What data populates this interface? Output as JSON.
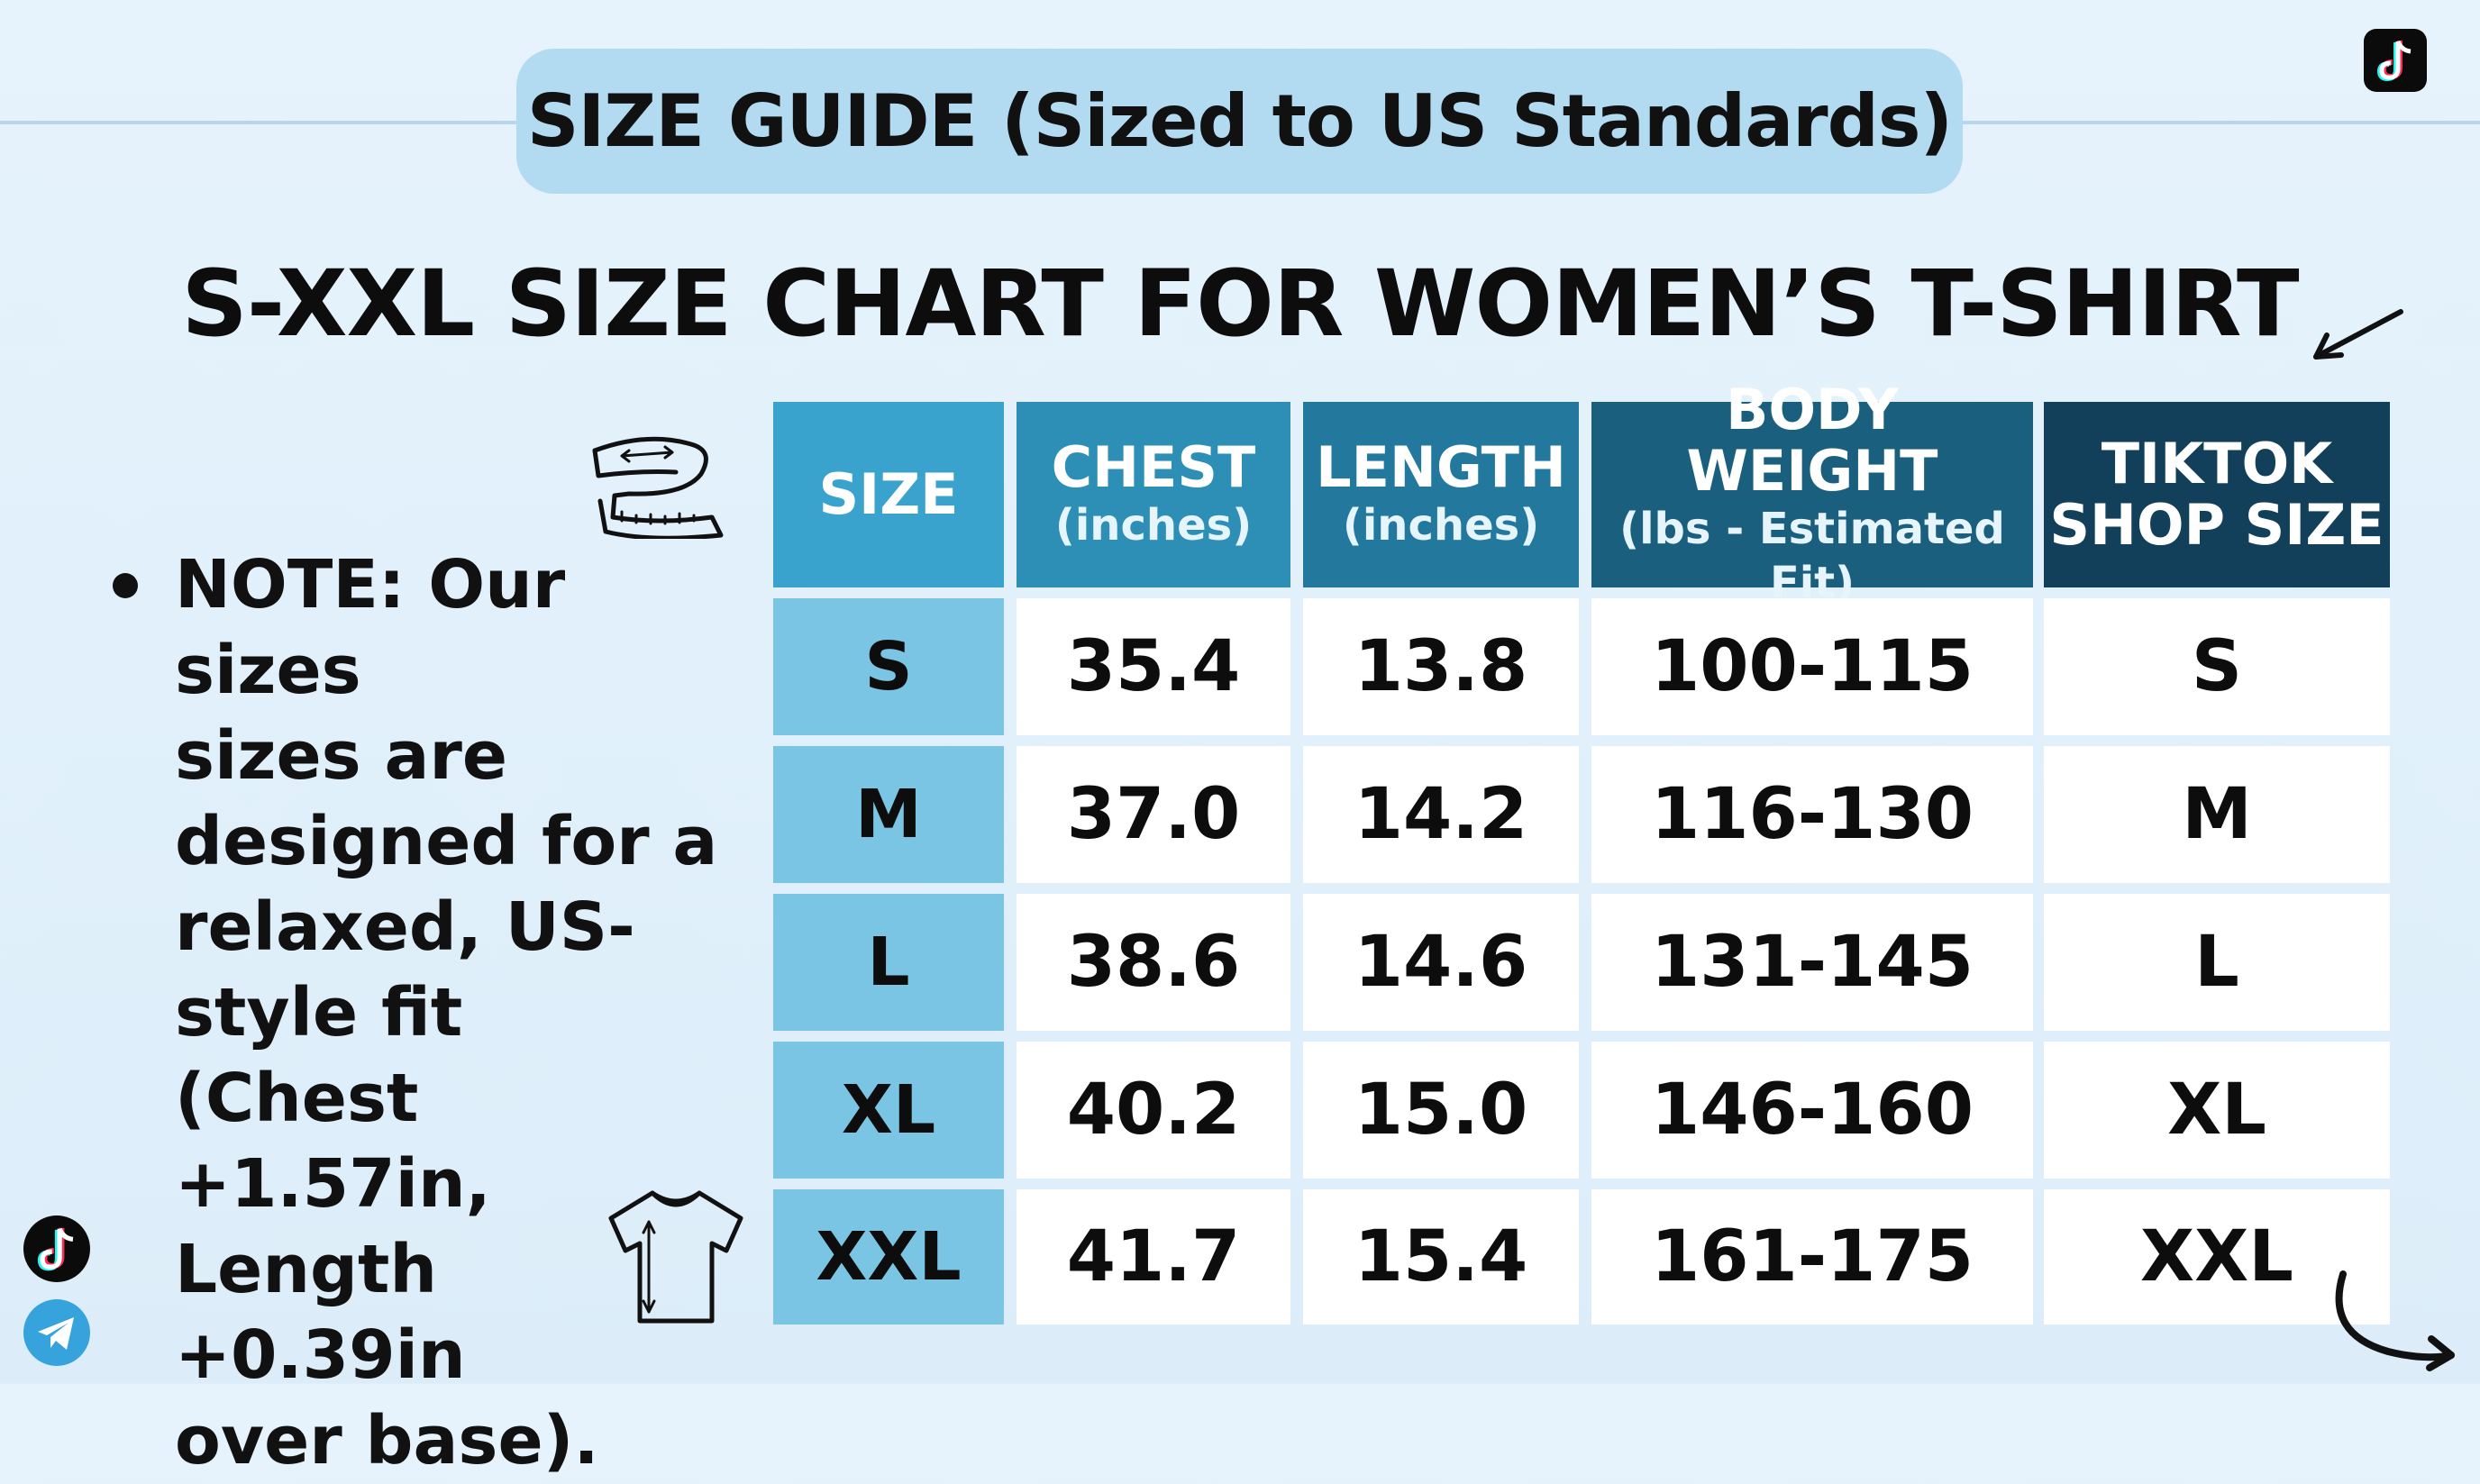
{
  "header": {
    "banner": "SIZE GUIDE (Sized to US Standards)"
  },
  "title": "S-XXL SIZE CHART FOR WOMEN’S T-SHIRT",
  "note": {
    "lines": [
      "NOTE: Our sizes",
      "sizes are",
      "designed for a",
      "relaxed, US-",
      "style fit",
      "(Chest +1.57in,",
      "Length +0.39in",
      "over base)."
    ]
  },
  "table": {
    "headers": [
      {
        "label": "SIZE",
        "sub": ""
      },
      {
        "label": "CHEST",
        "sub": "(inches)"
      },
      {
        "label": "LENGTH",
        "sub": "(inches)"
      },
      {
        "label": "BODY WEIGHT",
        "sub": "(lbs - Estimated Fit)"
      },
      {
        "label": "TIKTOK\nSHOP SIZE",
        "sub": ""
      }
    ],
    "rows": [
      [
        "S",
        "35.4",
        "13.8",
        "100-115",
        "S"
      ],
      [
        "M",
        "37.0",
        "14.2",
        "116-130",
        "M"
      ],
      [
        "L",
        "38.6",
        "14.6",
        "131-145",
        "L"
      ],
      [
        "XL",
        "40.2",
        "15.0",
        "146-160",
        "XL"
      ],
      [
        "XXL",
        "41.7",
        "15.4",
        "161-175",
        "XXL"
      ]
    ]
  },
  "icons": {
    "tape": "measuring-tape-icon",
    "shirt": "t-shirt-icon",
    "tiktok": "tiktok-icon",
    "telegram": "telegram-icon"
  },
  "colors": {
    "banner": "#b2dbf1",
    "size_col": "#79c5e3",
    "header_gradient": [
      "#3aa3cd",
      "#2e8fb6",
      "#23789d",
      "#1a5f7e",
      "#12405a"
    ]
  }
}
